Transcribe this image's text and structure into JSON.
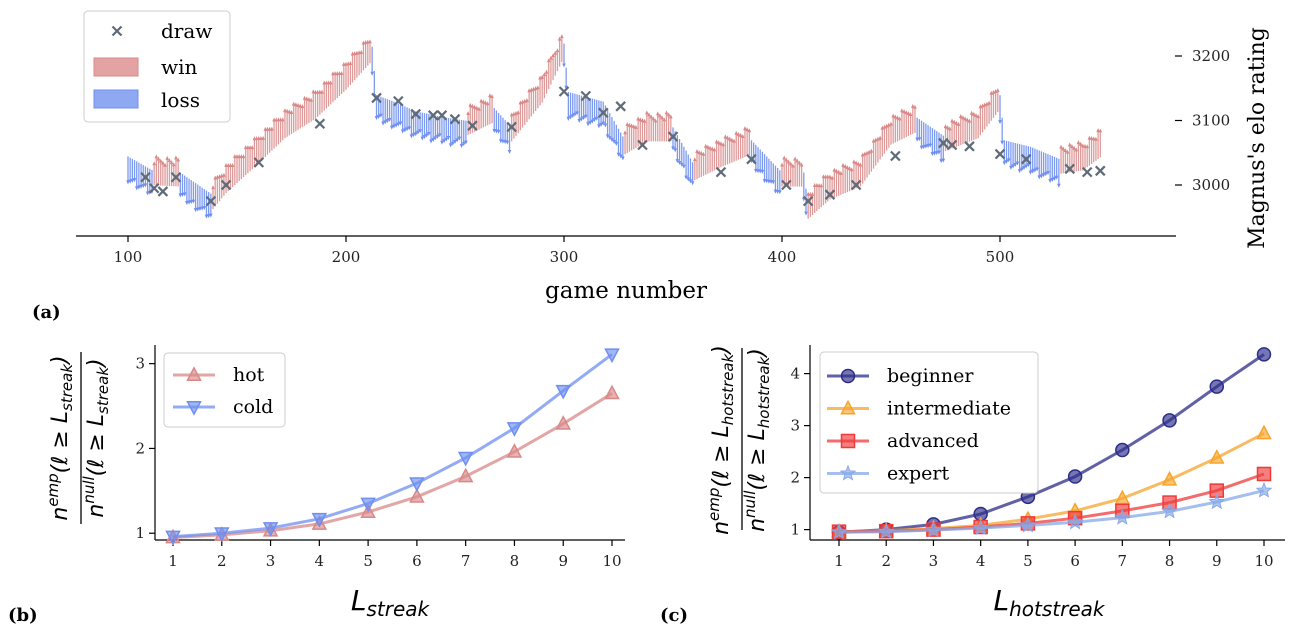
{
  "chart_data": [
    {
      "panel": "(a)",
      "type": "line",
      "xlabel": "game number",
      "ylabel": "Magnus's elo rating",
      "xlim": [
        76,
        1176
      ],
      "ylim": [
        2925,
        3240
      ],
      "xticks": [
        100,
        200,
        300,
        400,
        500
      ],
      "yticks": [
        3000,
        3100,
        3200
      ],
      "legend": {
        "placement": "top-left",
        "entries": [
          "draw",
          "win",
          "loss"
        ]
      },
      "series_colors": {
        "draw": "#5f6b78",
        "win": "#d98888",
        "loss": "#6f8ff0"
      },
      "rating_path": {
        "x": [
          100,
          112,
          124,
          139,
          145,
          158,
          172,
          186,
          200,
          212,
          214,
          222,
          232,
          246,
          256,
          268,
          276,
          290,
          300,
          302,
          318,
          328,
          338,
          350,
          360,
          372,
          386,
          400,
          410,
          412,
          422,
          436,
          450,
          462,
          475,
          490,
          500,
          502,
          514,
          528,
          538,
          546
        ],
        "y": [
          3035,
          3012,
          3010,
          2975,
          3000,
          3040,
          3085,
          3115,
          3160,
          3205,
          3130,
          3120,
          3105,
          3095,
          3090,
          3110,
          3080,
          3140,
          3210,
          3135,
          3120,
          3060,
          3080,
          3080,
          3020,
          3040,
          3060,
          3010,
          3010,
          2960,
          2990,
          3010,
          3075,
          3095,
          3065,
          3085,
          3130,
          3060,
          3050,
          3030,
          3035,
          3055
        ]
      },
      "draws": {
        "x": [
          108,
          112,
          116,
          122,
          138,
          145,
          160,
          188,
          214,
          224,
          232,
          240,
          244,
          250,
          258,
          276,
          300,
          310,
          318,
          326,
          336,
          350,
          372,
          386,
          402,
          412,
          422,
          434,
          452,
          474,
          478,
          486,
          500,
          512,
          532,
          540,
          546
        ],
        "y": [
          3012,
          2995,
          2990,
          3012,
          2975,
          3000,
          3035,
          3095,
          3135,
          3130,
          3110,
          3108,
          3108,
          3102,
          3092,
          3090,
          3145,
          3138,
          3112,
          3122,
          3062,
          3075,
          3020,
          3040,
          3000,
          2975,
          2985,
          3000,
          3045,
          3065,
          3062,
          3060,
          3048,
          3040,
          3025,
          3020,
          3022
        ]
      }
    },
    {
      "panel": "(b)",
      "type": "line",
      "x": [
        1,
        2,
        3,
        4,
        5,
        6,
        7,
        8,
        9,
        10
      ],
      "xlabel": "L_streak",
      "ylabel": "n^emp(ℓ ≥ L_streak) / n^null(ℓ ≥ L_streak)",
      "ylim": [
        0.92,
        3.22
      ],
      "yticks": [
        1,
        2,
        3
      ],
      "legend": {
        "placement": "top-left"
      },
      "series": [
        {
          "name": "hot",
          "color": "#d98888",
          "marker": "triangle-up",
          "values": [
            0.95,
            0.98,
            1.03,
            1.11,
            1.25,
            1.43,
            1.67,
            1.96,
            2.29,
            2.65
          ]
        },
        {
          "name": "cold",
          "color": "#6f8ff0",
          "marker": "triangle-down",
          "values": [
            0.96,
            1.0,
            1.06,
            1.17,
            1.35,
            1.59,
            1.89,
            2.24,
            2.68,
            3.11
          ]
        }
      ]
    },
    {
      "panel": "(c)",
      "type": "line",
      "x": [
        1,
        2,
        3,
        4,
        5,
        6,
        7,
        8,
        9,
        10
      ],
      "xlabel": "L_hotstreak",
      "ylabel": "n^emp(ℓ ≥ L_hotstreak) / n^null(ℓ ≥ L_hotstreak)",
      "ylim": [
        0.8,
        4.55
      ],
      "yticks": [
        1,
        2,
        3,
        4
      ],
      "legend": {
        "placement": "top-left"
      },
      "series": [
        {
          "name": "beginner",
          "color": "#2c2c8a",
          "marker": "circle",
          "values": [
            0.95,
            1.0,
            1.1,
            1.3,
            1.63,
            2.02,
            2.53,
            3.1,
            3.75,
            4.37
          ]
        },
        {
          "name": "intermediate",
          "color": "#f7a42c",
          "marker": "triangle-up",
          "values": [
            0.96,
            0.98,
            1.02,
            1.08,
            1.2,
            1.36,
            1.6,
            1.96,
            2.38,
            2.85
          ]
        },
        {
          "name": "advanced",
          "color": "#f03a3a",
          "marker": "square",
          "values": [
            0.96,
            0.97,
            1.0,
            1.05,
            1.12,
            1.22,
            1.36,
            1.52,
            1.75,
            2.07
          ]
        },
        {
          "name": "expert",
          "color": "#86a8ea",
          "marker": "star",
          "values": [
            0.95,
            0.96,
            0.99,
            1.03,
            1.08,
            1.14,
            1.23,
            1.35,
            1.53,
            1.75
          ]
        }
      ]
    }
  ],
  "labels": {
    "a": "(a)",
    "b": "(b)",
    "c": "(c)",
    "a_xlabel": "game number",
    "a_ylabel": "Magnus's elo rating",
    "b_xlabel_main": "L",
    "b_xlabel_sub": "streak",
    "c_xlabel_main": "L",
    "c_xlabel_sub": "hotstreak",
    "legend_a": [
      "draw",
      "win",
      "loss"
    ],
    "legend_b": [
      "hot",
      "cold"
    ],
    "legend_c": [
      "beginner",
      "intermediate",
      "advanced",
      "expert"
    ]
  }
}
